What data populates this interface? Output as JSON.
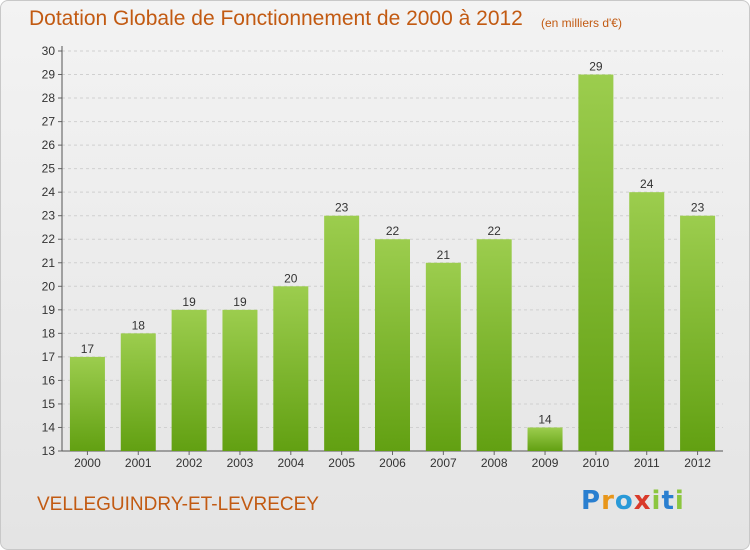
{
  "header": {
    "title": "Dotation Globale de Fonctionnement de 2000 à 2012",
    "unit": "(en milliers d'€)"
  },
  "footer": {
    "commune": "VELLEGUINDRY-ET-LEVRECEY",
    "logo_letters": [
      "P",
      "r",
      "o",
      "x",
      "i",
      "t",
      "i"
    ],
    "logo_colors": [
      "#2a7fd0",
      "#e8961a",
      "#2a9ad8",
      "#d93a2a",
      "#8cc63f",
      "#2a7fd0",
      "#8cc63f"
    ]
  },
  "colors": {
    "bar_top": "#9ccd4e",
    "bar_bottom": "#62a012",
    "title": "#c25a12",
    "grid": "#d0d0d0"
  },
  "chart_data": {
    "type": "bar",
    "title": "Dotation Globale de Fonctionnement de 2000 à 2012",
    "subtitle": "(en milliers d'€)",
    "xlabel": "",
    "ylabel": "",
    "categories": [
      "2000",
      "2001",
      "2002",
      "2003",
      "2004",
      "2005",
      "2006",
      "2007",
      "2008",
      "2009",
      "2010",
      "2011",
      "2012"
    ],
    "values": [
      17,
      18,
      19,
      19,
      20,
      23,
      22,
      21,
      22,
      14,
      29,
      24,
      23
    ],
    "ylim": [
      13,
      30
    ],
    "yticks": [
      "13",
      "14",
      "15",
      "16",
      "17",
      "18",
      "19",
      "20",
      "21",
      "22",
      "23",
      "24",
      "25",
      "26",
      "27",
      "28",
      "29",
      "30"
    ],
    "grid": true
  }
}
